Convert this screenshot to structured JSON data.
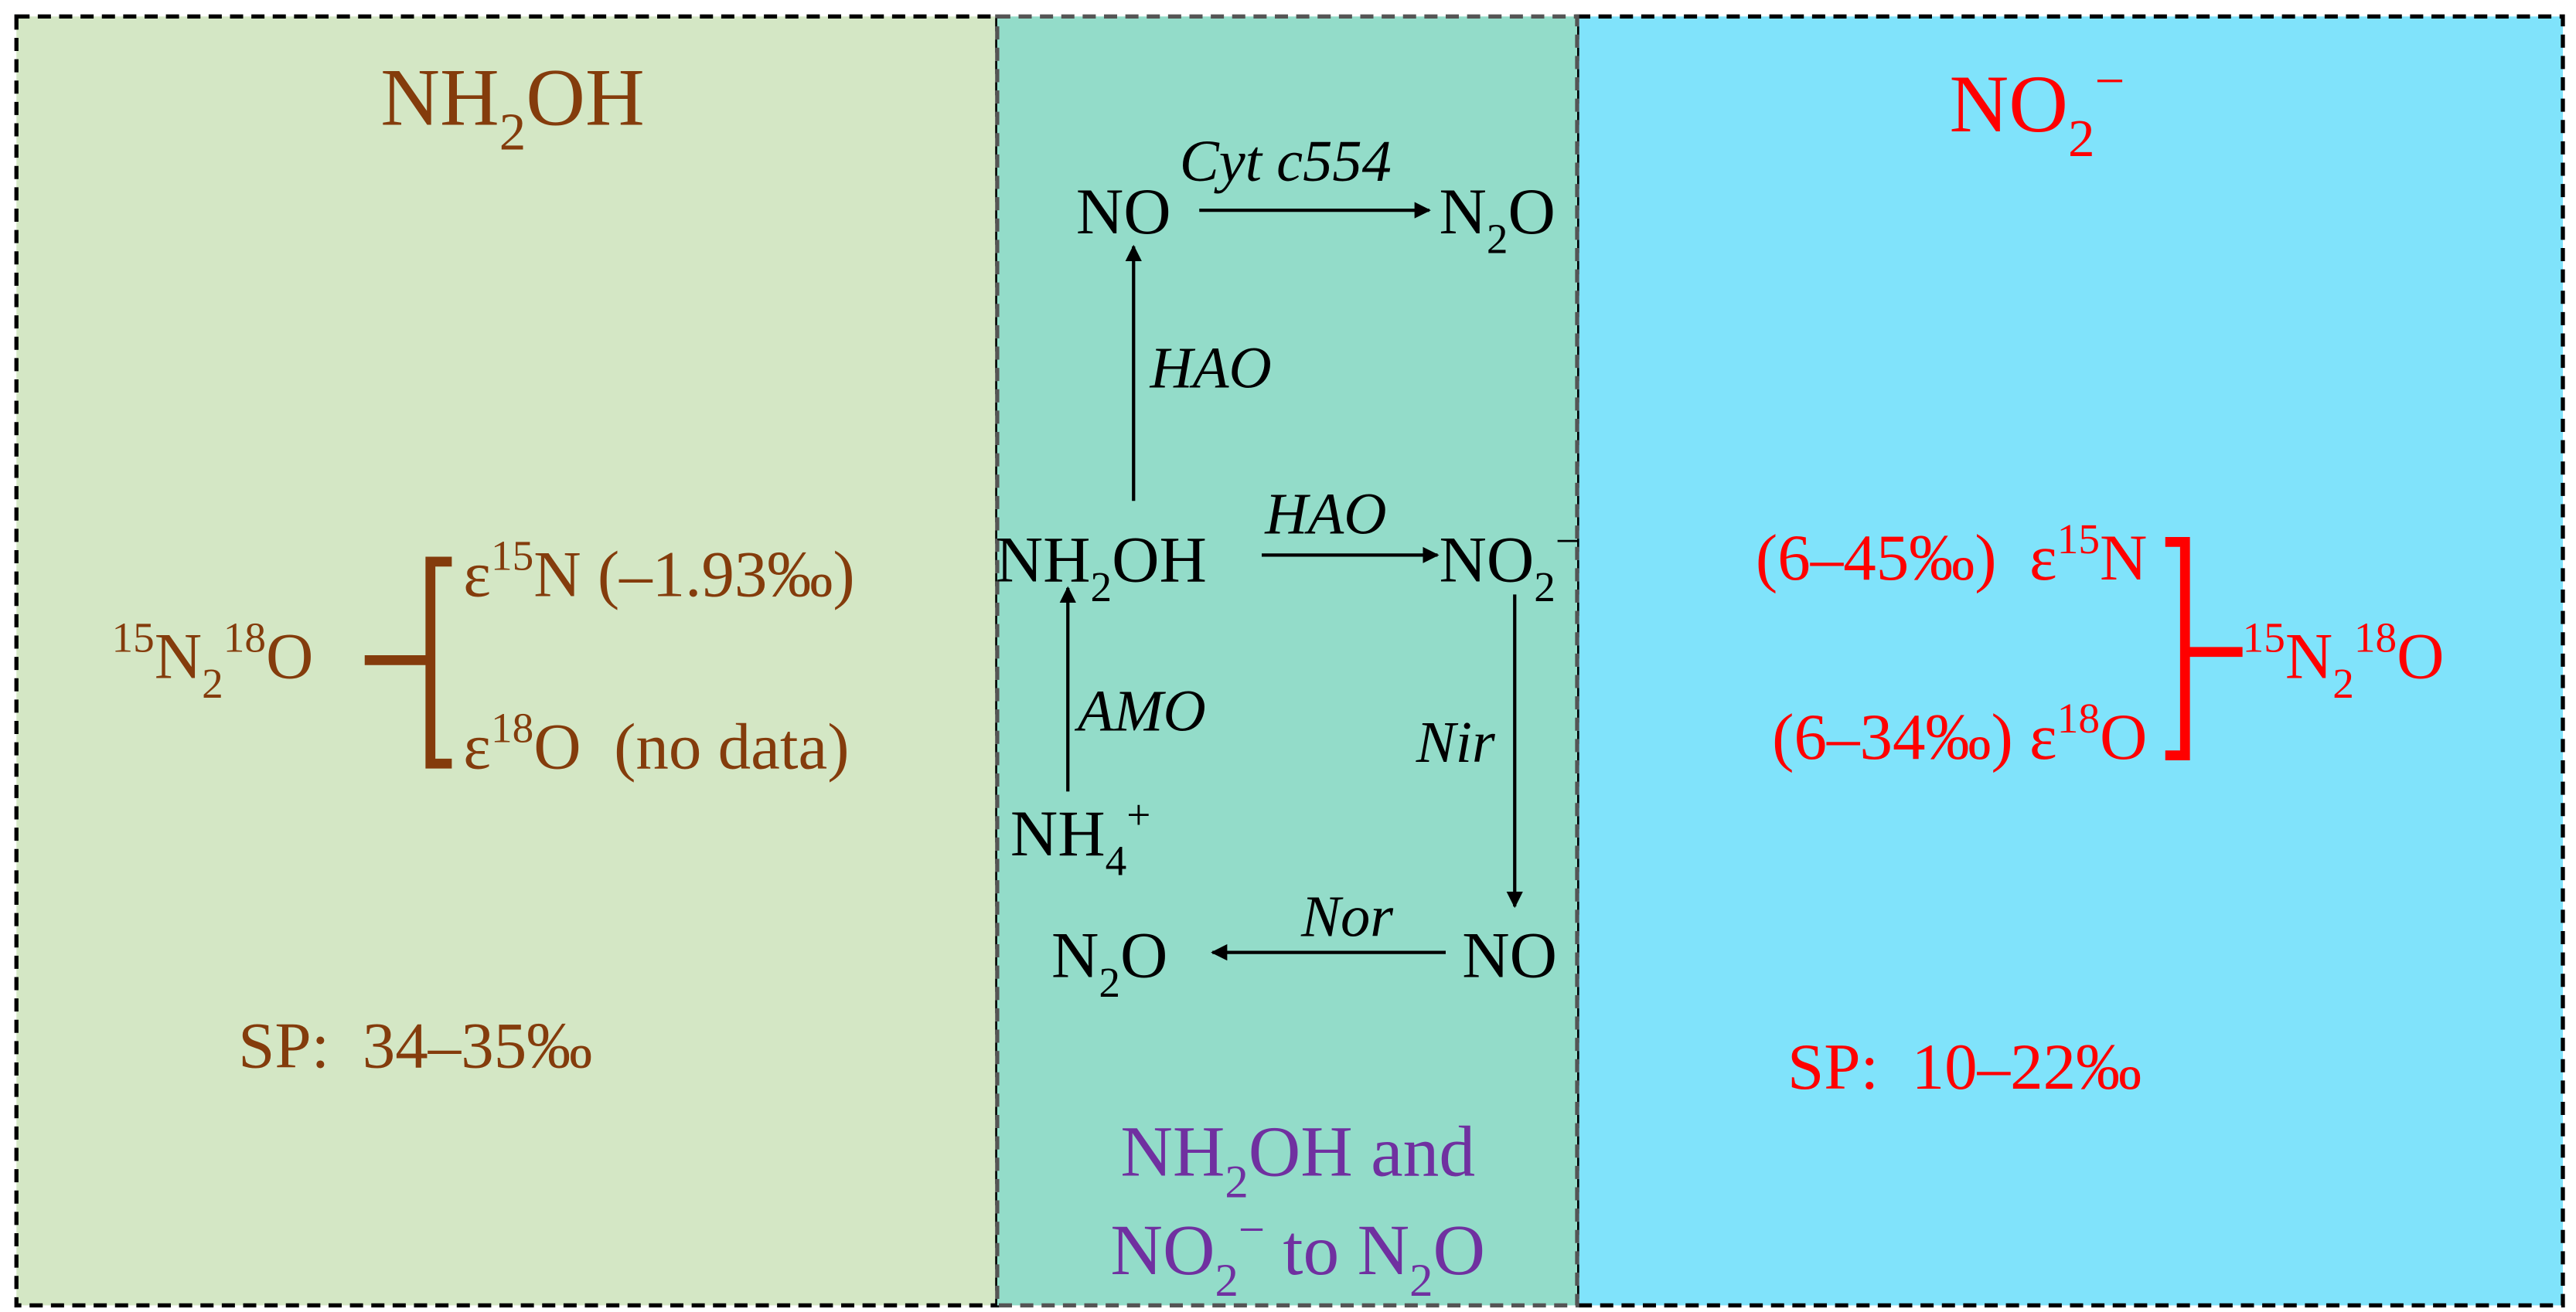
{
  "panels": {
    "left": {
      "title": [
        {
          "text": "NH"
        },
        {
          "text": "2",
          "script": "sub"
        },
        {
          "text": "OH"
        }
      ],
      "formula": [
        {
          "text": "15",
          "script": "sup"
        },
        {
          "text": "N"
        },
        {
          "text": "2",
          "script": "sub"
        },
        {
          "text": "18",
          "script": "sup"
        },
        {
          "text": "O"
        }
      ],
      "epsilon_n": [
        {
          "text": "ε"
        },
        {
          "text": "15",
          "script": "sup"
        },
        {
          "text": "N (–1.93‰)"
        }
      ],
      "epsilon_o": [
        {
          "text": "ε"
        },
        {
          "text": "18",
          "script": "sup"
        },
        {
          "text": "O  (no data)"
        }
      ],
      "sp": [
        {
          "text": "SP:  34–35‰"
        }
      ]
    },
    "middle": {
      "nodes": [
        [
          {
            "text": "NO"
          }
        ],
        [
          {
            "text": "N"
          },
          {
            "text": "2",
            "script": "sub"
          },
          {
            "text": "O"
          }
        ],
        [
          {
            "text": "NH"
          },
          {
            "text": "2",
            "script": "sub"
          },
          {
            "text": "OH"
          }
        ],
        [
          {
            "text": "NO"
          },
          {
            "text": "2",
            "script": "sub"
          },
          {
            "text": "−",
            "script": "sup"
          }
        ],
        [
          {
            "text": "NH"
          },
          {
            "text": "4",
            "script": "sub"
          },
          {
            "text": "+",
            "script": "sup"
          }
        ],
        [
          {
            "text": "N"
          },
          {
            "text": "2",
            "script": "sub"
          },
          {
            "text": "O"
          }
        ],
        [
          {
            "text": "NO"
          }
        ]
      ],
      "enzymes": [
        [
          {
            "text": "Cyt c554"
          }
        ],
        [
          {
            "text": "HAO"
          }
        ],
        [
          {
            "text": "HAO"
          }
        ],
        [
          {
            "text": "AMO"
          }
        ],
        [
          {
            "text": "Nir"
          }
        ],
        [
          {
            "text": "Nor"
          }
        ]
      ],
      "caption": [
        [
          {
            "text": "NH"
          },
          {
            "text": "2",
            "script": "sub"
          },
          {
            "text": "OH and"
          }
        ],
        [
          {
            "text": "NO"
          },
          {
            "text": "2",
            "script": "sub"
          },
          {
            "text": "−",
            "script": "sup"
          },
          {
            "text": " to N"
          },
          {
            "text": "2",
            "script": "sub"
          },
          {
            "text": "O"
          }
        ]
      ]
    },
    "right": {
      "title": [
        {
          "text": "NO"
        },
        {
          "text": "2",
          "script": "sub"
        },
        {
          "text": "−",
          "script": "sup"
        }
      ],
      "epsilon_n": [
        {
          "text": "(6–45‰)  ε"
        },
        {
          "text": "15",
          "script": "sup"
        },
        {
          "text": "N"
        }
      ],
      "epsilon_o": [
        {
          "text": "(6–34‰) ε"
        },
        {
          "text": "18",
          "script": "sup"
        },
        {
          "text": "O"
        }
      ],
      "formula": [
        {
          "text": "15",
          "script": "sup"
        },
        {
          "text": "N"
        },
        {
          "text": "2",
          "script": "sub"
        },
        {
          "text": "18",
          "script": "sup"
        },
        {
          "text": "O"
        }
      ],
      "sp": [
        {
          "text": "SP:  10–22‰"
        }
      ]
    }
  }
}
